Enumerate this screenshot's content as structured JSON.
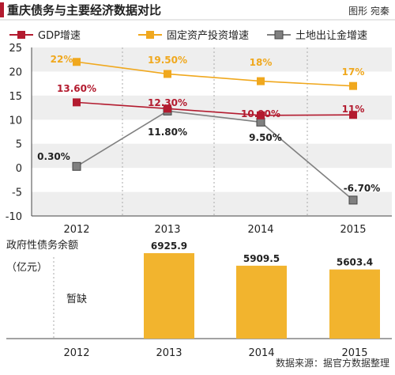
{
  "header": {
    "title": "重庆债务与主要经济数据对比",
    "byline": "图形 宛秦"
  },
  "footer": {
    "source": "数据来源：据官方数据整理"
  },
  "colors": {
    "gdp": "#b31b2f",
    "fai": "#f0a81e",
    "land": "#808080",
    "debt_bar": "#f2b42e",
    "band": "#eeeeee",
    "dash": "#aaaaaa",
    "text": "#222222",
    "title_bar": "#b31b2f"
  },
  "chart_data": [
    {
      "type": "line",
      "title": "",
      "xlabel": "",
      "ylabel": "",
      "x": [
        "2012",
        "2013",
        "2014",
        "2015"
      ],
      "ylim": [
        -10,
        25
      ],
      "yticks": [
        "25",
        "20",
        "15",
        "10",
        "5",
        "0",
        "-5",
        "-10"
      ],
      "grid": false,
      "legend_position": "top",
      "series": [
        {
          "name": "GDP增速",
          "values": [
            13.6,
            12.3,
            10.9,
            11
          ],
          "labels": [
            "13.60%",
            "12.30%",
            "10.90%",
            "11%"
          ],
          "color": "#b31b2f"
        },
        {
          "name": "固定资产投资增速",
          "values": [
            22,
            19.5,
            18,
            17
          ],
          "labels": [
            "22%",
            "19.50%",
            "18%",
            "17%"
          ],
          "color": "#f0a81e"
        },
        {
          "name": "土地出让金增速",
          "values": [
            0.3,
            11.8,
            9.5,
            -6.7
          ],
          "labels": [
            "0.30%",
            "11.80%",
            "9.50%",
            "-6.70%"
          ],
          "color": "#808080"
        }
      ]
    },
    {
      "type": "bar",
      "title": "政府性债务余额",
      "ylabel": "（亿元）",
      "categories": [
        "2012",
        "2013",
        "2014",
        "2015"
      ],
      "values": [
        null,
        6925.9,
        5909.5,
        5603.4
      ],
      "labels": [
        "暂缺",
        "6925.9",
        "5909.5",
        "5603.4"
      ],
      "color": "#f2b42e"
    }
  ]
}
